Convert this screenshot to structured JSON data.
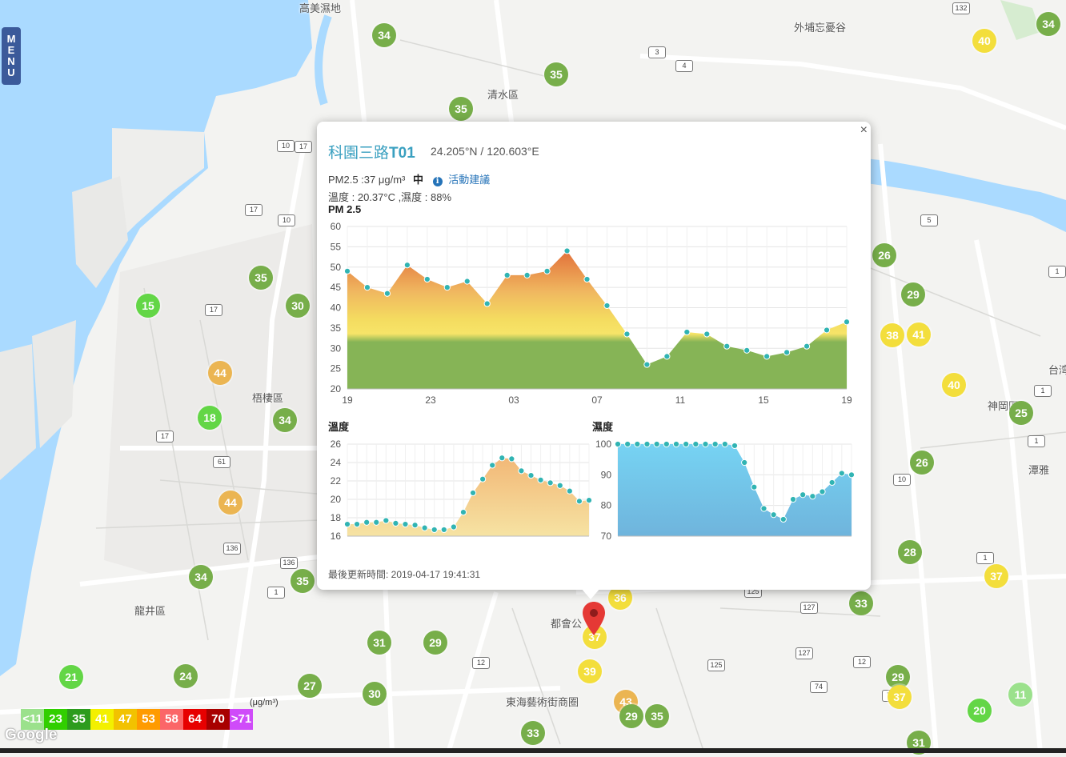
{
  "menu": {
    "label_chars": [
      "M",
      "E",
      "N",
      "U"
    ]
  },
  "places": [
    {
      "key": "gaomei",
      "text": "高美濕地"
    },
    {
      "key": "qingshui",
      "text": "清水區"
    },
    {
      "key": "wuqi",
      "text": "梧棲區"
    },
    {
      "key": "longjing",
      "text": "龍井區"
    },
    {
      "key": "waipu",
      "text": "外埔忘憂谷"
    },
    {
      "key": "shengang",
      "text": "神岡區"
    },
    {
      "key": "dushi",
      "text": "都會公"
    },
    {
      "key": "donghai",
      "text": "東海藝術街商圈"
    },
    {
      "key": "tanya",
      "text": "潭雅"
    },
    {
      "key": "taiwan",
      "text": "台湾"
    }
  ],
  "markers": [
    {
      "value": "34",
      "color": "#77ae4a"
    },
    {
      "value": "35",
      "color": "#77ae4a"
    },
    {
      "value": "35",
      "color": "#77ae4a"
    },
    {
      "value": "40",
      "color": "#f3de3c"
    },
    {
      "value": "34",
      "color": "#77ae4a"
    },
    {
      "value": "15",
      "color": "#63d646"
    },
    {
      "value": "35",
      "color": "#77ae4a"
    },
    {
      "value": "30",
      "color": "#77ae4a"
    },
    {
      "value": "44",
      "color": "#ebb552"
    },
    {
      "value": "18",
      "color": "#63d646"
    },
    {
      "value": "34",
      "color": "#77ae4a"
    },
    {
      "value": "44",
      "color": "#ebb552"
    },
    {
      "value": "34",
      "color": "#77ae4a"
    },
    {
      "value": "35",
      "color": "#77ae4a"
    },
    {
      "value": "21",
      "color": "#63d646"
    },
    {
      "value": "24",
      "color": "#77ae4a"
    },
    {
      "value": "27",
      "color": "#77ae4a"
    },
    {
      "value": "30",
      "color": "#77ae4a"
    },
    {
      "value": "31",
      "color": "#77ae4a"
    },
    {
      "value": "29",
      "color": "#77ae4a"
    },
    {
      "value": "33",
      "color": "#77ae4a"
    },
    {
      "value": "36",
      "color": "#f3de3c"
    },
    {
      "value": "37",
      "color": "#f3de3c"
    },
    {
      "value": "39",
      "color": "#f3de3c"
    },
    {
      "value": "43",
      "color": "#ebb552"
    },
    {
      "value": "29",
      "color": "#77ae4a"
    },
    {
      "value": "35",
      "color": "#77ae4a"
    },
    {
      "value": "26",
      "color": "#77ae4a"
    },
    {
      "value": "29",
      "color": "#77ae4a"
    },
    {
      "value": "38",
      "color": "#f3de3c"
    },
    {
      "value": "41",
      "color": "#f3de3c"
    },
    {
      "value": "40",
      "color": "#f3de3c"
    },
    {
      "value": "25",
      "color": "#77ae4a"
    },
    {
      "value": "26",
      "color": "#77ae4a"
    },
    {
      "value": "28",
      "color": "#77ae4a"
    },
    {
      "value": "37",
      "color": "#f3de3c"
    },
    {
      "value": "33",
      "color": "#77ae4a"
    },
    {
      "value": "29",
      "color": "#77ae4a"
    },
    {
      "value": "37",
      "color": "#f3de3c"
    },
    {
      "value": "20",
      "color": "#63d646"
    },
    {
      "value": "11",
      "color": "#9be18c"
    },
    {
      "value": "31",
      "color": "#77ae4a"
    }
  ],
  "road_shields": [
    "132",
    "3",
    "4",
    "17",
    "10",
    "17",
    "10",
    "17",
    "17",
    "61",
    "136",
    "136",
    "1",
    "12",
    "127",
    "127",
    "125",
    "125",
    "12",
    "74",
    "74",
    "1",
    "1",
    "10",
    "1",
    "1",
    "5"
  ],
  "popup": {
    "close_label": "×",
    "station_name": "科園三路",
    "station_code": "T01",
    "coords": "24.205°N / 120.603°E",
    "pm_text": "PM2.5 :37 μg/m³",
    "pm_level": "中",
    "info_icon": "i",
    "advice_link": "活動建議",
    "weather_text": "溫度 : 20.37°C ,濕度 : 88%",
    "updated": "最後更新時間: 2019-04-17 19:41:31"
  },
  "legend": {
    "unit": "(μg/m³)",
    "items": [
      {
        "label": "<11",
        "color": "#9be18c"
      },
      {
        "label": "23",
        "color": "#31cf00"
      },
      {
        "label": "35",
        "color": "#2d9c1e"
      },
      {
        "label": "41",
        "color": "#f3f000"
      },
      {
        "label": "47",
        "color": "#f2c200"
      },
      {
        "label": "53",
        "color": "#ff9b00"
      },
      {
        "label": "58",
        "color": "#fb6668"
      },
      {
        "label": "64",
        "color": "#e70000"
      },
      {
        "label": "70",
        "color": "#a80000"
      },
      {
        "label": ">71",
        "color": "#cf4bf9"
      }
    ]
  },
  "attribution": "Google",
  "chart_data": [
    {
      "type": "area",
      "title": "PM 2.5",
      "ylim": [
        20,
        60
      ],
      "yticks": [
        "20",
        "25",
        "30",
        "35",
        "40",
        "45",
        "50",
        "55",
        "60"
      ],
      "xtick_labels": [
        "19",
        "23",
        "03",
        "07",
        "11",
        "15",
        "19"
      ],
      "values": [
        49,
        45,
        43.5,
        50.5,
        47,
        45,
        46.5,
        41,
        48,
        48,
        49,
        54,
        47,
        40.5,
        33.5,
        26,
        28,
        34,
        33.5,
        30.5,
        29.5,
        28,
        29,
        30.5,
        34.5,
        36.5
      ]
    },
    {
      "type": "area",
      "title": "溫度",
      "ylim": [
        16,
        26
      ],
      "yticks": [
        "16",
        "18",
        "20",
        "22",
        "24",
        "26"
      ],
      "values": [
        17.3,
        17.3,
        17.5,
        17.5,
        17.7,
        17.4,
        17.3,
        17.2,
        16.9,
        16.7,
        16.7,
        17.0,
        18.6,
        20.7,
        22.2,
        23.7,
        24.5,
        24.4,
        23.1,
        22.6,
        22.1,
        21.8,
        21.5,
        20.9,
        19.8,
        19.9
      ]
    },
    {
      "type": "area",
      "title": "濕度",
      "ylim": [
        70,
        100
      ],
      "yticks": [
        "70",
        "80",
        "90",
        "100"
      ],
      "values": [
        100,
        100,
        100,
        100,
        100,
        100,
        100,
        100,
        100,
        100,
        100,
        100,
        99.5,
        94,
        86,
        79,
        77,
        75.5,
        82,
        83.5,
        83,
        84.5,
        87.5,
        90.5,
        90
      ]
    }
  ]
}
